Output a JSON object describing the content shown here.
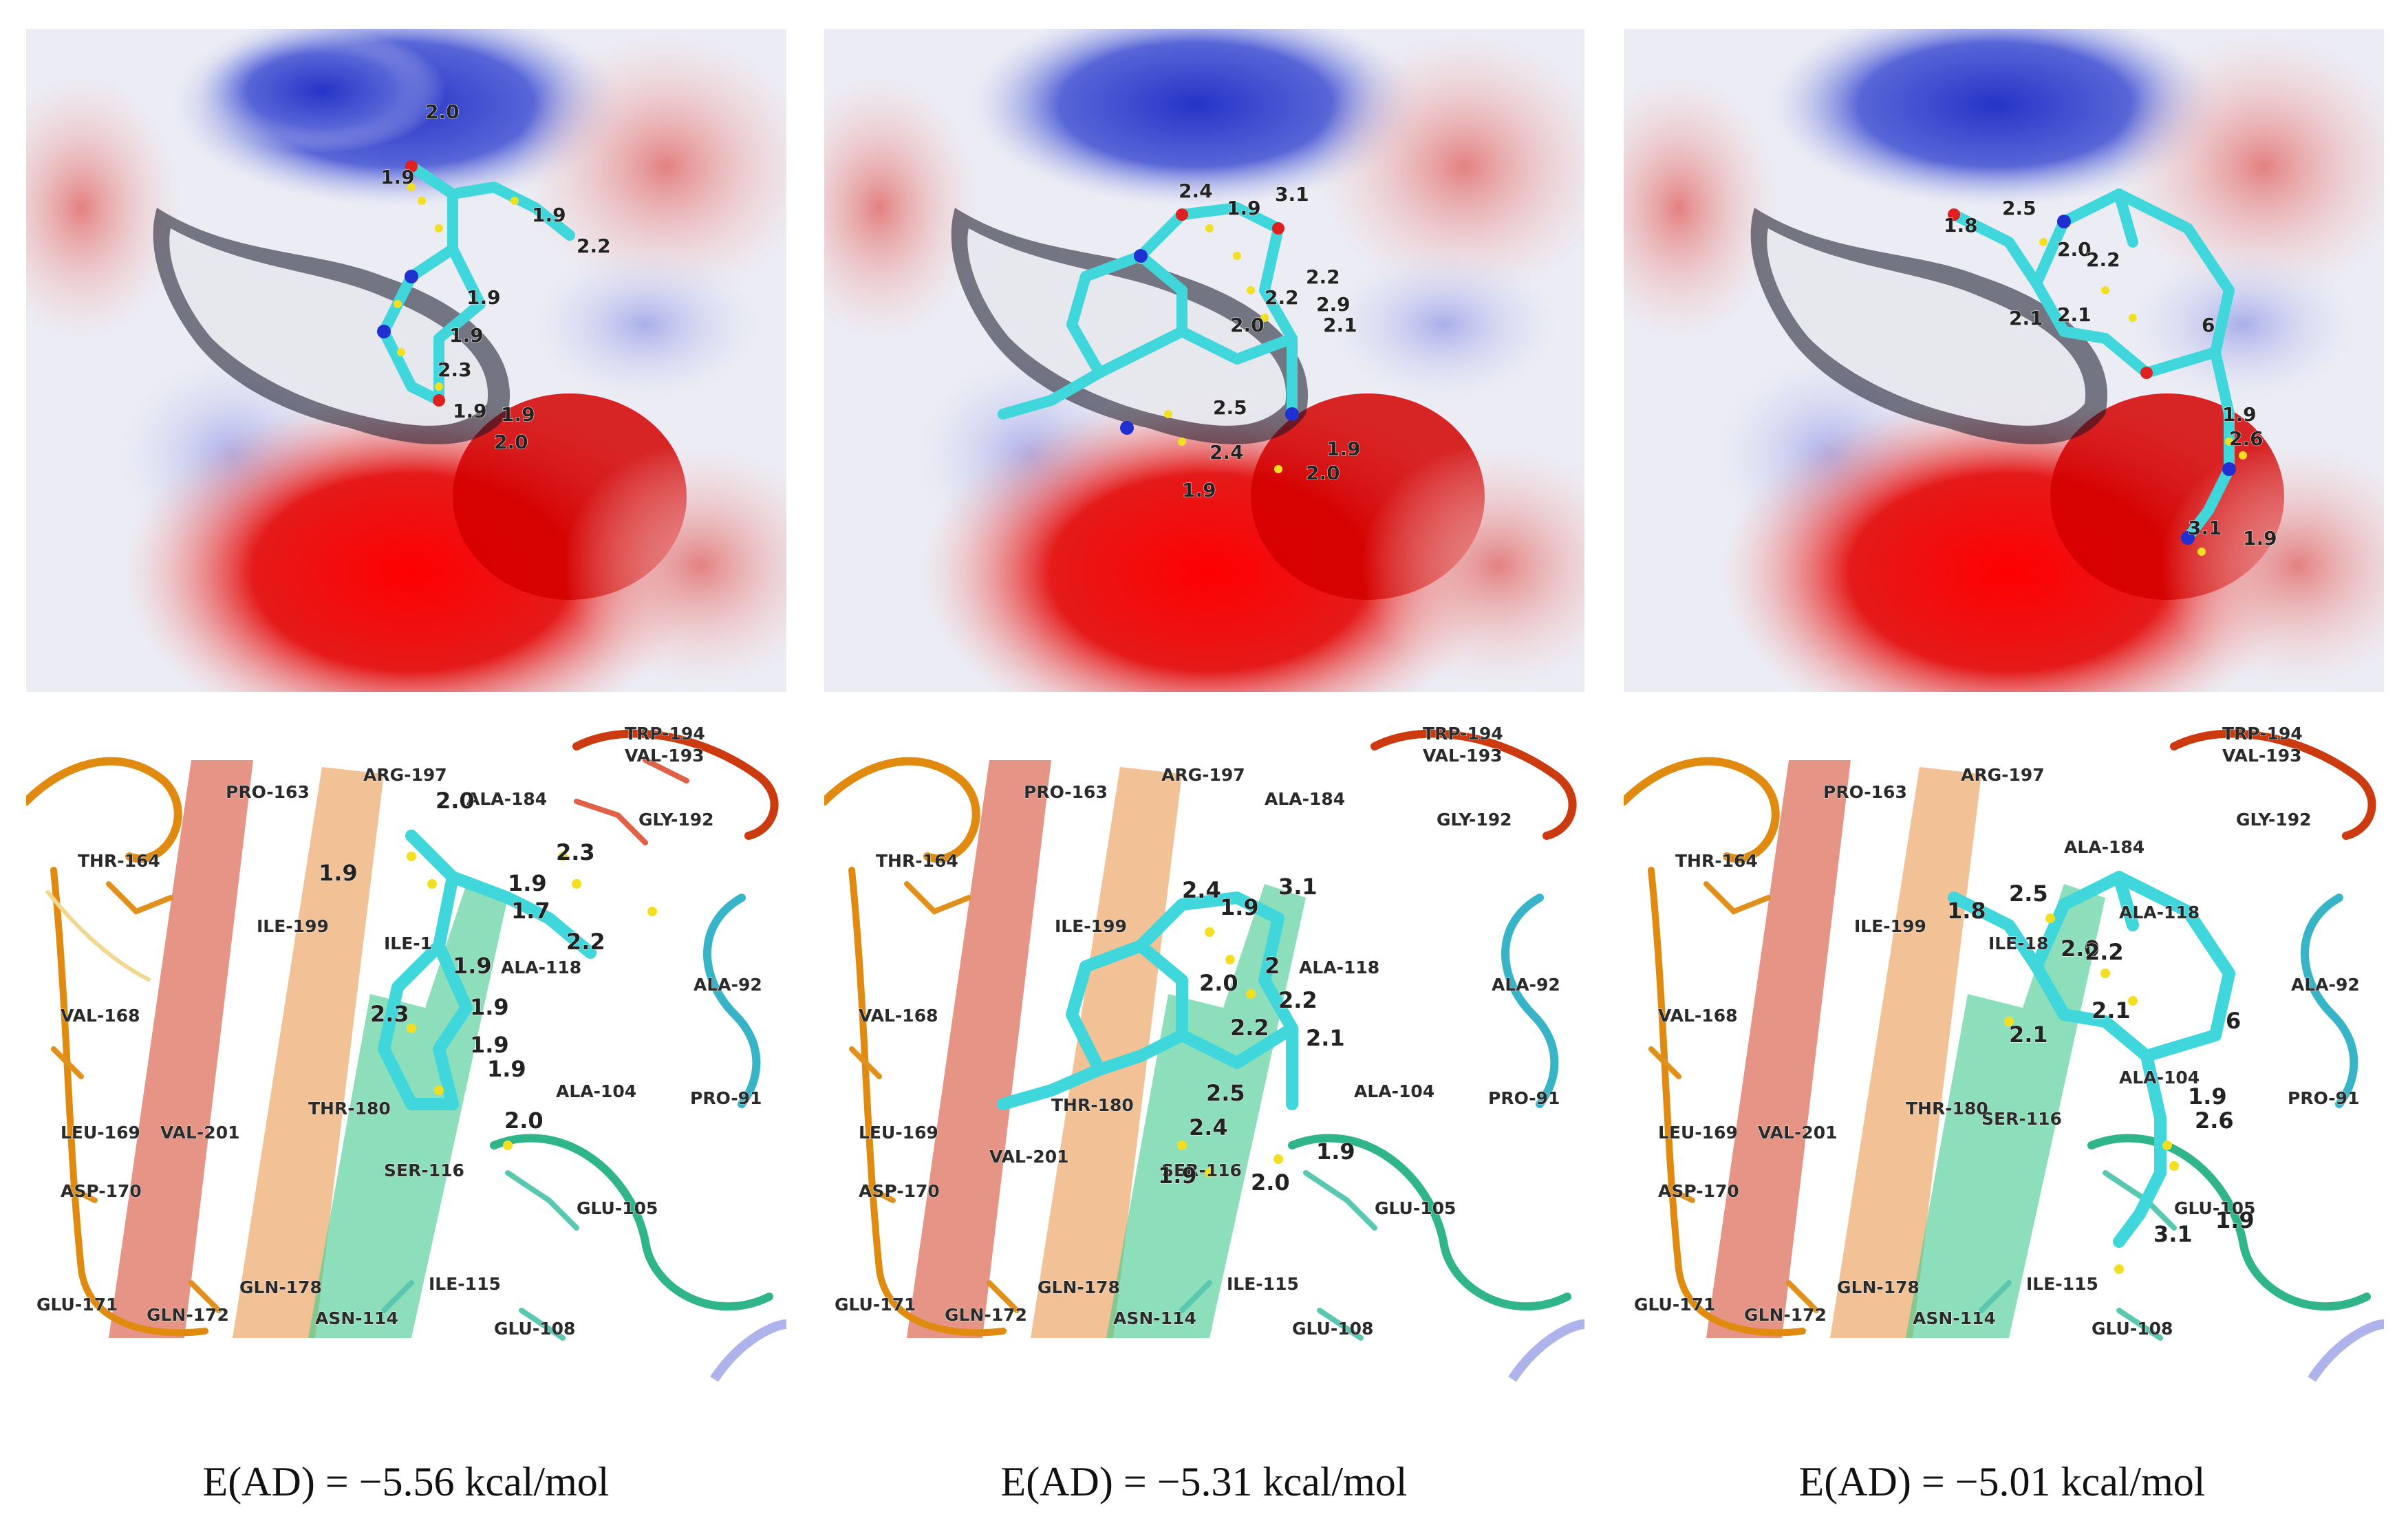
{
  "figure": {
    "captions": [
      "E(AD) = −5.56 kcal/mol",
      "E(AD) = −5.31 kcal/mol",
      "E(AD) = −5.01 kcal/mol"
    ]
  },
  "surface_distances": [
    [
      "2.0",
      "1.9",
      "1.9",
      "2.2",
      "1.9",
      "1.9",
      "2.3",
      "1.9",
      "1.9",
      "2.0"
    ],
    [
      "2.4",
      "3.1",
      "1.9",
      "2.2",
      "2.2",
      "2.0",
      "2.9",
      "2.1",
      "2.5",
      "2.4",
      "1.9",
      "1.9",
      "2.0"
    ],
    [
      "1.8",
      "2.5",
      "2.0",
      "2.2",
      "2.1",
      "2.1",
      "6",
      "1.9",
      "2.6",
      "3.1",
      "1.9"
    ]
  ],
  "residue_labels": {
    "common": [
      "TRP-194",
      "VAL-193",
      "PRO-163",
      "ARG-197",
      "ALA-184",
      "GLY-192",
      "THR-164",
      "ILE-199",
      "VAL-168",
      "ALA-92",
      "LEU-169",
      "VAL-201",
      "ASP-170",
      "GLU-171",
      "GLN-172",
      "GLN-178",
      "ASN-114",
      "ILE-115",
      "GLU-108",
      "GLU-105",
      "PRO-91",
      "ALA-104",
      "SER-116",
      "THR-180",
      "ALA-118"
    ],
    "panel1_extra": [
      "ILE-1"
    ],
    "panel3_extra": [
      "ILE-18"
    ]
  },
  "cartoon_distances": [
    [
      "2.0",
      "1.9",
      "2.3",
      "1.9",
      "1.7",
      "2.2",
      "1.9",
      "1.9",
      "2.3",
      "1.9",
      "1.9",
      "2.0"
    ],
    [
      "2.4",
      "3.1",
      "1.9",
      "2.0",
      "2.2",
      "2.2",
      "2.1",
      "2.5",
      "2.4",
      "1.9",
      "1.9",
      "2.0",
      "2"
    ],
    [
      "1.8",
      "2.5",
      "2.0",
      "2.2",
      "2.1",
      "2.1",
      "6",
      "1.9",
      "2.6",
      "3.1",
      "1.9"
    ]
  ],
  "colors": {
    "positive": "#2f3fd0",
    "negative": "#e01010",
    "neutral": "#f2f2f4",
    "ligand": "#3fd6dc",
    "hbond": "#f2e020",
    "orange_chain": "#e08a10",
    "green_chain": "#3bbd7e",
    "cyan_chain": "#37b4c8",
    "red_chain": "#cc3a10"
  }
}
